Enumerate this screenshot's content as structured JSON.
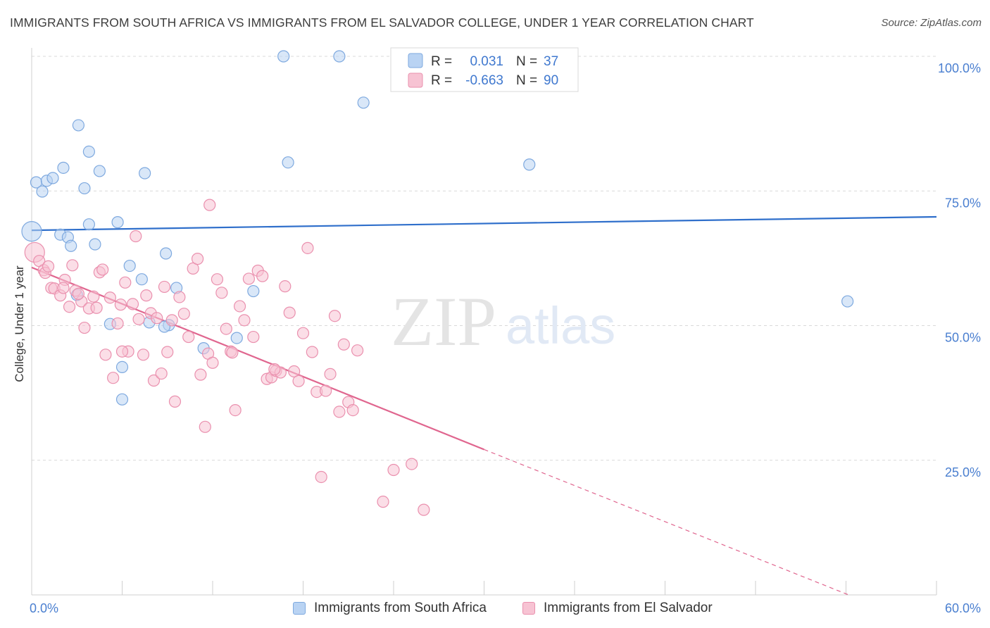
{
  "title": "IMMIGRANTS FROM SOUTH AFRICA VS IMMIGRANTS FROM EL SALVADOR COLLEGE, UNDER 1 YEAR CORRELATION CHART",
  "source": "Source: ZipAtlas.com",
  "watermark": {
    "zip": "ZIP",
    "atlas": "atlas"
  },
  "colors": {
    "blue_fill": "#b9d3f3",
    "blue_stroke": "#7ea9df",
    "blue_line": "#2f6fcb",
    "pink_fill": "#f7c3d3",
    "pink_stroke": "#ea90ae",
    "pink_line": "#e0668f",
    "axis_text": "#4a7fd0"
  },
  "stats_legend": {
    "r_label": "R =",
    "n_label": "N =",
    "rows": [
      {
        "r": "0.031",
        "n": "37"
      },
      {
        "r": "-0.663",
        "n": "90"
      }
    ]
  },
  "chart_data": {
    "type": "scatter",
    "title": "IMMIGRANTS FROM SOUTH AFRICA VS IMMIGRANTS FROM EL SALVADOR COLLEGE, UNDER 1 YEAR CORRELATION CHART",
    "xlabel": "",
    "ylabel": "College, Under 1 year",
    "xlim": [
      0,
      60
    ],
    "ylim": [
      0,
      100
    ],
    "x_tick_labels": [
      "0.0%",
      "60.0%"
    ],
    "y_tick_labels": [
      "100.0%",
      "75.0%",
      "50.0%",
      "25.0%"
    ],
    "y_ticks": [
      100,
      75,
      50,
      25
    ],
    "grid": "horizontal dashed",
    "legend_position": "bottom",
    "series": [
      {
        "name": "Immigrants from South Africa",
        "color": "blue",
        "trend": {
          "x0": 0,
          "y0": 67.7,
          "x1": 60,
          "y1": 70.2,
          "dashed_from": null
        },
        "points": [
          [
            0.0,
            67.5
          ],
          [
            0.3,
            76.6
          ],
          [
            0.7,
            74.9
          ],
          [
            1.0,
            76.9
          ],
          [
            1.4,
            77.4
          ],
          [
            2.1,
            79.3
          ],
          [
            3.1,
            87.2
          ],
          [
            3.5,
            75.5
          ],
          [
            3.8,
            82.3
          ],
          [
            4.5,
            78.7
          ],
          [
            7.5,
            78.3
          ],
          [
            16.7,
            100.0
          ],
          [
            20.4,
            100.0
          ],
          [
            22.0,
            91.4
          ],
          [
            17.0,
            80.3
          ],
          [
            33.0,
            79.9
          ],
          [
            1.9,
            66.9
          ],
          [
            2.4,
            66.4
          ],
          [
            2.6,
            64.8
          ],
          [
            3.8,
            68.8
          ],
          [
            4.2,
            65.1
          ],
          [
            5.7,
            69.2
          ],
          [
            6.5,
            61.1
          ],
          [
            7.3,
            58.6
          ],
          [
            8.9,
            63.4
          ],
          [
            9.6,
            57.0
          ],
          [
            14.7,
            56.4
          ],
          [
            3.0,
            55.7
          ],
          [
            5.2,
            50.3
          ],
          [
            7.8,
            50.6
          ],
          [
            9.1,
            50.1
          ],
          [
            11.4,
            45.8
          ],
          [
            13.6,
            47.7
          ],
          [
            6.0,
            42.3
          ],
          [
            6.0,
            36.3
          ],
          [
            54.1,
            54.5
          ],
          [
            8.8,
            49.8
          ]
        ]
      },
      {
        "name": "Immigrants from El Salvador",
        "color": "pink",
        "trend": {
          "x0": 0,
          "y0": 60.8,
          "x1": 30,
          "y1": 27.0,
          "dashed_from": 30,
          "dash_x1": 60,
          "dash_y1": -6.5
        },
        "points": [
          [
            0.2,
            63.6
          ],
          [
            0.5,
            62.0
          ],
          [
            0.8,
            60.3
          ],
          [
            0.9,
            59.8
          ],
          [
            1.1,
            61.0
          ],
          [
            1.3,
            57.0
          ],
          [
            1.5,
            56.9
          ],
          [
            1.9,
            55.6
          ],
          [
            2.2,
            58.5
          ],
          [
            2.5,
            53.5
          ],
          [
            2.7,
            61.2
          ],
          [
            2.9,
            56.5
          ],
          [
            3.3,
            54.5
          ],
          [
            3.5,
            49.6
          ],
          [
            3.8,
            53.2
          ],
          [
            4.1,
            55.4
          ],
          [
            4.3,
            53.3
          ],
          [
            4.5,
            59.9
          ],
          [
            4.7,
            60.4
          ],
          [
            4.9,
            44.6
          ],
          [
            5.2,
            55.2
          ],
          [
            5.4,
            40.3
          ],
          [
            5.7,
            50.4
          ],
          [
            5.9,
            53.9
          ],
          [
            6.2,
            58.0
          ],
          [
            6.4,
            45.2
          ],
          [
            6.7,
            54.0
          ],
          [
            6.9,
            66.6
          ],
          [
            7.1,
            51.2
          ],
          [
            7.4,
            44.6
          ],
          [
            7.6,
            55.6
          ],
          [
            7.9,
            52.3
          ],
          [
            8.1,
            39.8
          ],
          [
            8.3,
            51.4
          ],
          [
            8.6,
            41.1
          ],
          [
            8.8,
            57.2
          ],
          [
            9.0,
            45.1
          ],
          [
            9.3,
            51.0
          ],
          [
            9.5,
            35.9
          ],
          [
            9.8,
            55.3
          ],
          [
            10.1,
            52.2
          ],
          [
            10.4,
            47.9
          ],
          [
            10.7,
            60.6
          ],
          [
            11.0,
            62.4
          ],
          [
            11.2,
            40.9
          ],
          [
            11.5,
            31.2
          ],
          [
            11.7,
            44.8
          ],
          [
            12.0,
            43.1
          ],
          [
            12.3,
            58.6
          ],
          [
            12.6,
            56.1
          ],
          [
            12.9,
            49.4
          ],
          [
            13.2,
            45.2
          ],
          [
            13.5,
            34.3
          ],
          [
            13.8,
            53.6
          ],
          [
            14.1,
            51.0
          ],
          [
            14.4,
            58.7
          ],
          [
            14.7,
            47.9
          ],
          [
            15.0,
            60.2
          ],
          [
            15.3,
            59.2
          ],
          [
            15.6,
            40.1
          ],
          [
            15.9,
            40.4
          ],
          [
            16.2,
            41.6
          ],
          [
            16.5,
            41.3
          ],
          [
            16.8,
            57.3
          ],
          [
            17.1,
            52.4
          ],
          [
            17.4,
            41.5
          ],
          [
            17.7,
            39.7
          ],
          [
            18.0,
            48.6
          ],
          [
            18.3,
            64.4
          ],
          [
            18.6,
            45.1
          ],
          [
            18.9,
            37.7
          ],
          [
            19.2,
            21.9
          ],
          [
            19.5,
            37.9
          ],
          [
            19.8,
            41.0
          ],
          [
            20.1,
            51.8
          ],
          [
            20.4,
            34.0
          ],
          [
            20.7,
            46.5
          ],
          [
            21.0,
            35.8
          ],
          [
            21.3,
            34.3
          ],
          [
            21.6,
            45.4
          ],
          [
            23.3,
            17.3
          ],
          [
            24.0,
            23.2
          ],
          [
            25.2,
            24.3
          ],
          [
            26.0,
            15.8
          ],
          [
            11.8,
            72.4
          ],
          [
            2.1,
            57.0
          ],
          [
            6.0,
            45.2
          ],
          [
            3.1,
            55.9
          ],
          [
            13.3,
            45.0
          ],
          [
            16.1,
            41.9
          ]
        ]
      }
    ]
  },
  "bottom_legend": {
    "items": [
      "Immigrants from South Africa",
      "Immigrants from El Salvador"
    ]
  }
}
